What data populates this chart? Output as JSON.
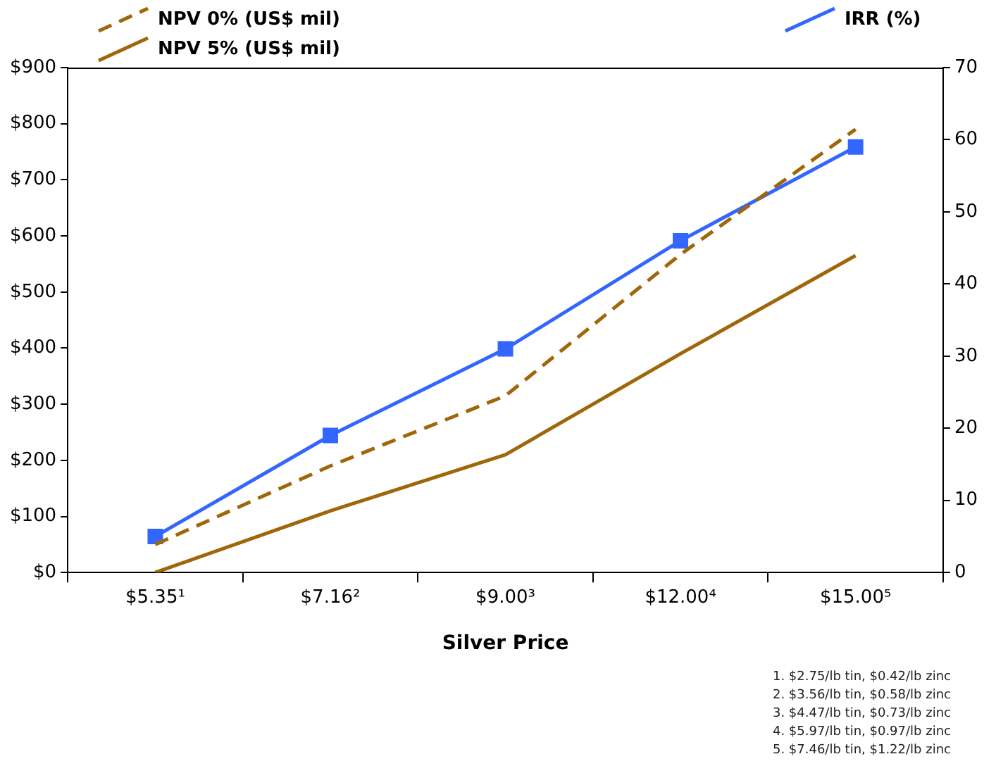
{
  "chart_data": {
    "type": "line",
    "xlabel": "Silver Price",
    "categories": [
      "$5.35¹",
      "$7.16²",
      "$9.00³",
      "$12.00⁴",
      "$15.00⁵"
    ],
    "series": [
      {
        "name": "NPV 0% (US$ mil)",
        "color": "#a0660a",
        "line_style": "dashed",
        "marker": "none",
        "values": [
          50,
          190,
          315,
          567,
          790
        ]
      },
      {
        "name": "NPV 5% (US$ mil)",
        "color": "#a0660a",
        "line_style": "solid",
        "marker": "none",
        "values": [
          0,
          110,
          210,
          390,
          565
        ]
      },
      {
        "name": "IRR (%)",
        "color": "#3366ff",
        "line_style": "solid",
        "marker": "square",
        "axis": "y2",
        "values": [
          5,
          19,
          31,
          46,
          59
        ]
      }
    ],
    "ylim": [
      0,
      900
    ],
    "yticks": [
      {
        "value": 0,
        "label": "$0"
      },
      {
        "value": 100,
        "label": "$100"
      },
      {
        "value": 200,
        "label": "$200"
      },
      {
        "value": 300,
        "label": "$300"
      },
      {
        "value": 400,
        "label": "$400"
      },
      {
        "value": 500,
        "label": "$500"
      },
      {
        "value": 600,
        "label": "$600"
      },
      {
        "value": 700,
        "label": "$700"
      },
      {
        "value": 800,
        "label": "$800"
      },
      {
        "value": 900,
        "label": "$900"
      }
    ],
    "y2lim": [
      0,
      70
    ],
    "y2ticks": [
      0,
      10,
      20,
      30,
      40,
      50,
      60,
      70
    ],
    "grid": false,
    "legend": "top",
    "annotations": [
      "1. $2.75/lb tin, $0.42/lb zinc",
      "2. $3.56/lb tin, $0.58/lb zinc",
      "3. $4.47/lb tin, $0.73/lb zinc",
      "4. $5.97/lb tin, $0.97/lb zinc",
      "5. $7.46/lb tin, $1.22/lb zinc"
    ]
  }
}
